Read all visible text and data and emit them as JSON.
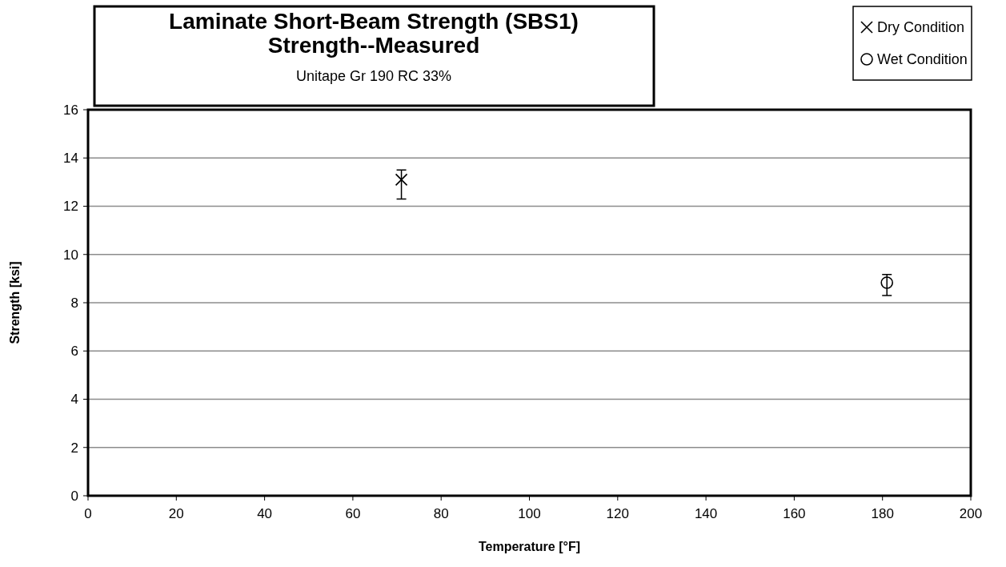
{
  "chart_data": {
    "type": "scatter",
    "title": "Laminate Short-Beam Strength (SBS1)\nStrength--Measured",
    "subtitle": "Unitape Gr 190 RC 33%",
    "xlabel": "Temperature [°F]",
    "ylabel": "Strength [ksi]",
    "series": [
      {
        "name": "Dry Condition",
        "color": "#000000",
        "marker": "cross",
        "x": [
          71
        ],
        "values": [
          13.1
        ],
        "errors": [
          [
            12.3,
            13.5
          ]
        ]
      },
      {
        "name": "Wet Condition",
        "color": "#000000",
        "marker": "circle",
        "x": [
          181
        ],
        "values": [
          8.83
        ],
        "errors": [
          [
            8.3,
            9.17
          ]
        ]
      }
    ],
    "xlim": [
      0,
      200
    ],
    "xticks": [
      0,
      20,
      40,
      60,
      80,
      100,
      120,
      140,
      160,
      180,
      200
    ],
    "ylim": [
      0,
      16
    ],
    "yticks": [
      0,
      2,
      4,
      6,
      8,
      10,
      12,
      14,
      16
    ],
    "grid": "y",
    "legend": "top right"
  }
}
